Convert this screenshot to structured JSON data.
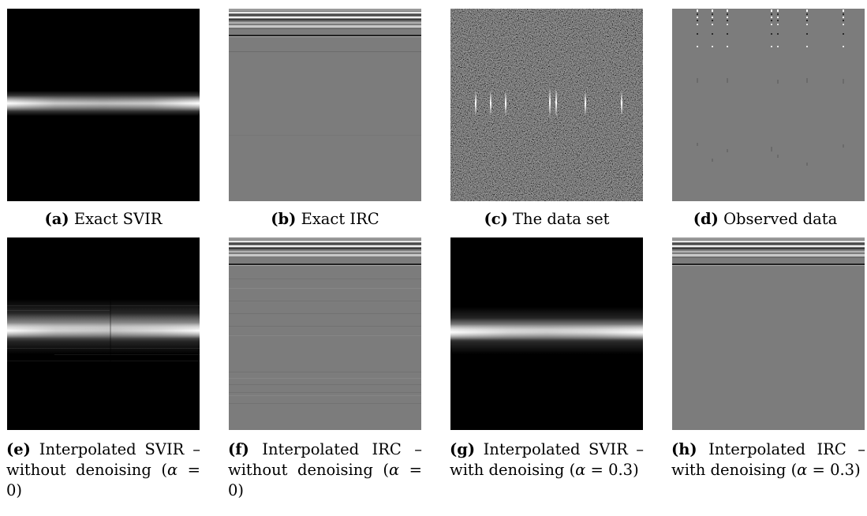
{
  "figure": {
    "row1": [
      {
        "label": "(a)",
        "text": "Exact SVIR"
      },
      {
        "label": "(b)",
        "text": "Exact IRC"
      },
      {
        "label": "(c)",
        "text": "The data set"
      },
      {
        "label": "(d)",
        "text": "Observed data"
      }
    ],
    "row2": [
      {
        "label": "(e)",
        "text": "Interpolated SVIR – without denoising (",
        "alpha": "α",
        "after": " = 0)"
      },
      {
        "label": "(f)",
        "text": "Interpolated IRC – without denoising (",
        "alpha": "α",
        "after": " = 0)"
      },
      {
        "label": "(g)",
        "text": "Interpolated SVIR – with denoising (",
        "alpha": "α",
        "after": " = 0.3)"
      },
      {
        "label": "(h)",
        "text": "Interpolated IRC – with denoising (",
        "alpha": "α",
        "after": " = 0.3)"
      }
    ]
  }
}
